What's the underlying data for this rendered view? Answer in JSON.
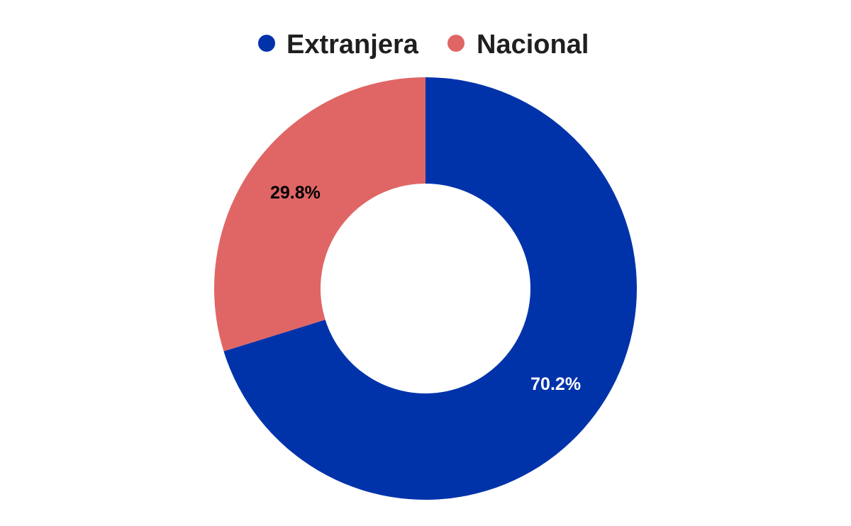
{
  "chart_data": {
    "type": "pie",
    "style": "donut",
    "categories": [
      "Extranjera",
      "Nacional"
    ],
    "values": [
      70.2,
      29.8
    ],
    "value_labels": [
      "70.2%",
      "29.8%"
    ],
    "colors": [
      "#0033aa",
      "#e06666"
    ],
    "label_colors": [
      "#ffffff",
      "#000000"
    ],
    "legend": {
      "placement": "top-center",
      "entries": [
        "Extranjera",
        "Nacional"
      ]
    },
    "start_angle": "12 o'clock",
    "direction": "clockwise"
  }
}
